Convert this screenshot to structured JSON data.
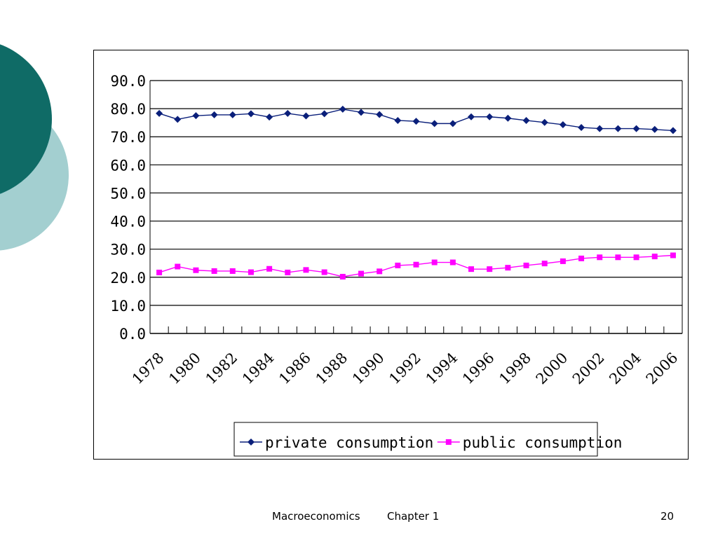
{
  "footer": {
    "course": "Macroeconomics",
    "chapter": "Chapter 1",
    "page": "20"
  },
  "colors": {
    "deco_dark": "#0f6b66",
    "deco_light": "#a3cfd0",
    "private": "#0a1f7a",
    "public": "#ff00ff"
  },
  "chart_data": {
    "type": "line",
    "title": "",
    "xlabel": "",
    "ylabel": "",
    "ylim": [
      0,
      90
    ],
    "yticks": [
      "0.0",
      "10.0",
      "20.0",
      "30.0",
      "40.0",
      "50.0",
      "60.0",
      "70.0",
      "80.0",
      "90.0"
    ],
    "x": [
      1978,
      1979,
      1980,
      1981,
      1982,
      1983,
      1984,
      1985,
      1986,
      1987,
      1988,
      1989,
      1990,
      1991,
      1992,
      1993,
      1994,
      1995,
      1996,
      1997,
      1998,
      1999,
      2000,
      2001,
      2002,
      2003,
      2004,
      2005,
      2006
    ],
    "xtick_labels": [
      "1978",
      "1980",
      "1982",
      "1984",
      "1986",
      "1988",
      "1990",
      "1992",
      "1994",
      "1996",
      "1998",
      "2000",
      "2002",
      "2004",
      "2006"
    ],
    "grid": "horizontal",
    "legend": "bottom",
    "series": [
      {
        "name": "private consumption",
        "marker": "diamond",
        "values": [
          78.3,
          76.2,
          77.5,
          77.8,
          77.8,
          78.2,
          77.0,
          78.3,
          77.4,
          78.2,
          79.8,
          78.7,
          77.9,
          75.8,
          75.5,
          74.7,
          74.7,
          77.1,
          77.1,
          76.6,
          75.8,
          75.1,
          74.3,
          73.3,
          72.9,
          72.9,
          72.9,
          72.6,
          72.2
        ]
      },
      {
        "name": "public consumption",
        "marker": "square",
        "values": [
          21.7,
          23.8,
          22.5,
          22.2,
          22.2,
          21.8,
          23.0,
          21.7,
          22.6,
          21.8,
          20.2,
          21.3,
          22.1,
          24.2,
          24.5,
          25.3,
          25.3,
          22.9,
          22.9,
          23.4,
          24.2,
          24.9,
          25.7,
          26.7,
          27.1,
          27.1,
          27.1,
          27.4,
          27.8
        ]
      }
    ]
  }
}
